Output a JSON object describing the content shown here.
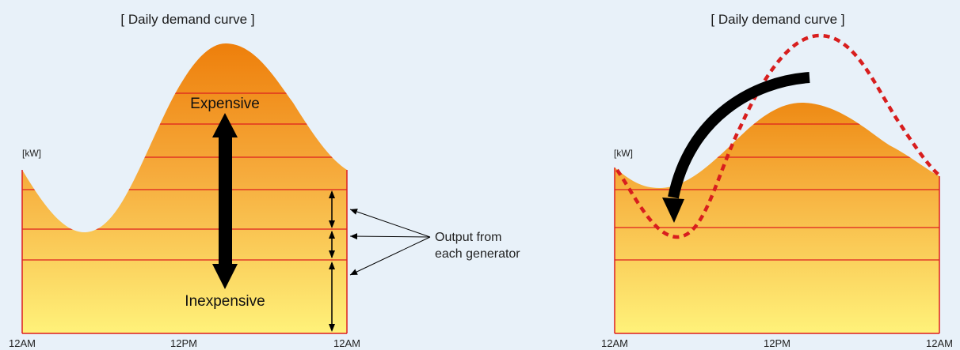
{
  "left_panel": {
    "title": "[ Daily demand curve ]",
    "unit": "[kW]",
    "x_ticks": [
      "12AM",
      "12PM",
      "12AM"
    ],
    "label_expensive": "Expensive",
    "label_inexpensive": "Inexpensive"
  },
  "right_panel": {
    "title": "[ Daily demand curve ]",
    "unit": "[kW]",
    "x_ticks": [
      "12AM",
      "12PM",
      "12AM"
    ]
  },
  "annotation": {
    "line1": "Output from",
    "line2": "each generator"
  },
  "colors": {
    "background": "#e8f1f9",
    "fill_top": "#ee7f0b",
    "fill_bottom": "#fff27a",
    "band_line": "#dd1f1f",
    "dashed_curve": "#d81e1e",
    "arrow": "#000000"
  }
}
